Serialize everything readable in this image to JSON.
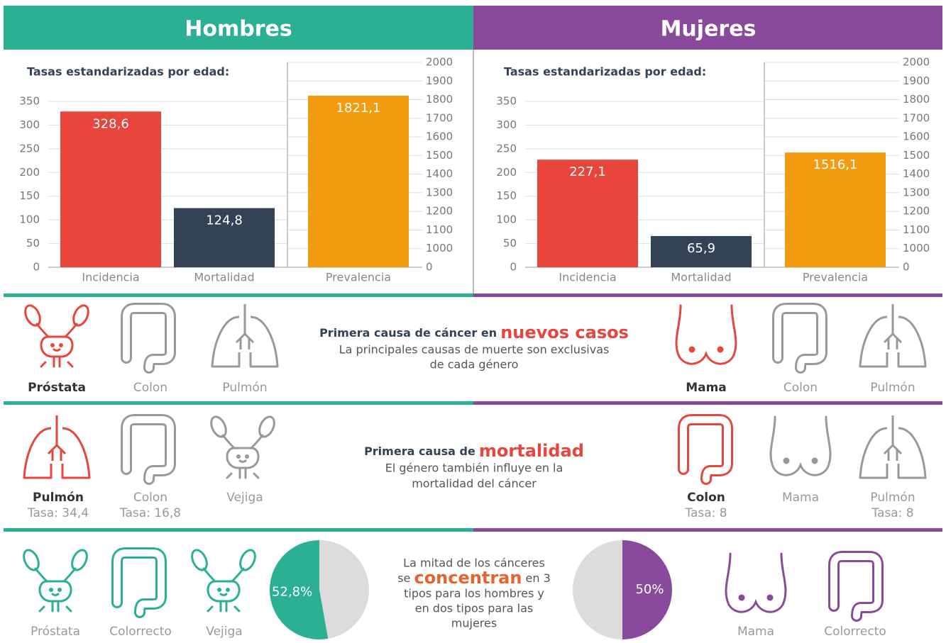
{
  "header": {
    "left": "Hombres",
    "right": "Mujeres"
  },
  "chart_data": [
    {
      "type": "bar",
      "title": "Tasas estandarizadas por edad:",
      "categories": [
        "Incidencia",
        "Mortalidad",
        "Prevalencia"
      ],
      "values": [
        328.6,
        124.8,
        1821.1
      ],
      "value_labels": [
        "328,6",
        "124,8",
        "1821,1"
      ],
      "colors": [
        "#e8453c",
        "#344256",
        "#f39c12"
      ],
      "bar_axes": [
        "y",
        "y",
        "y2"
      ],
      "ylim": [
        0,
        350
      ],
      "yticks": [
        0,
        50,
        100,
        150,
        200,
        250,
        300,
        350
      ],
      "y2lim": [
        0,
        2000
      ],
      "y2ticks": [
        0,
        1000,
        1100,
        1200,
        1300,
        1400,
        1500,
        1600,
        1700,
        1800,
        1900,
        2000
      ],
      "y2_scale": "tick-spaced",
      "grid": true
    },
    {
      "type": "bar",
      "title": "Tasas estandarizadas por edad:",
      "categories": [
        "Incidencia",
        "Mortalidad",
        "Prevalencia"
      ],
      "values": [
        227.1,
        65.9,
        1516.1
      ],
      "value_labels": [
        "227,1",
        "65,9",
        "1516,1"
      ],
      "colors": [
        "#e8453c",
        "#344256",
        "#f39c12"
      ],
      "bar_axes": [
        "y",
        "y",
        "y2"
      ],
      "ylim": [
        0,
        350
      ],
      "yticks": [
        0,
        50,
        100,
        150,
        200,
        250,
        300,
        350
      ],
      "y2lim": [
        0,
        2000
      ],
      "y2ticks": [
        0,
        1000,
        1100,
        1200,
        1300,
        1400,
        1500,
        1600,
        1700,
        1800,
        1900,
        2000
      ],
      "y2_scale": "tick-spaced",
      "grid": true
    },
    {
      "type": "pie",
      "values": [
        52.8
      ],
      "value_labels": [
        "52,8%"
      ],
      "color": "#2bb094",
      "rest_color": "#dcdcdc",
      "clockwise": false
    },
    {
      "type": "pie",
      "values": [
        50
      ],
      "value_labels": [
        "50%"
      ],
      "color": "#8a4a9c",
      "rest_color": "#dcdcdc",
      "clockwise": true
    }
  ],
  "new_cases": {
    "title_prefix": "Primera causa de cáncer en",
    "title_highlight": "nuevos casos",
    "lines": [
      "La principales causas de muerte son exclusivas",
      "de cada género"
    ],
    "men": [
      "Próstata",
      "Colon",
      "Pulmón"
    ],
    "women": [
      "Mama",
      "Colon",
      "Pulmón"
    ]
  },
  "mortality": {
    "title_prefix": "Primera causa de",
    "title_highlight": "mortalidad",
    "lines": [
      "El género también influye en la",
      "mortalidad del cáncer"
    ],
    "men": [
      {
        "label": "Pulmón",
        "rate": "Tasa: 34,4"
      },
      {
        "label": "Colon",
        "rate": "Tasa: 16,8"
      },
      {
        "label": "Vejiga"
      }
    ],
    "women": [
      {
        "label": "Colon",
        "rate": "Tasa: 8"
      },
      {
        "label": "Mama"
      },
      {
        "label": "Pulmón",
        "rate": "Tasa: 8"
      }
    ]
  },
  "concentration": {
    "line1": "La mitad de los cánceres",
    "line2_before": "se",
    "line2_highlight": "concentran",
    "line2_after": "en 3",
    "rest": [
      "tipos para los hombres y",
      "en dos tipos para las",
      "mujeres"
    ],
    "men": [
      "Próstata",
      "Colorrecto",
      "Vejiga"
    ],
    "women": [
      "Mama",
      "Colorrecto"
    ]
  }
}
